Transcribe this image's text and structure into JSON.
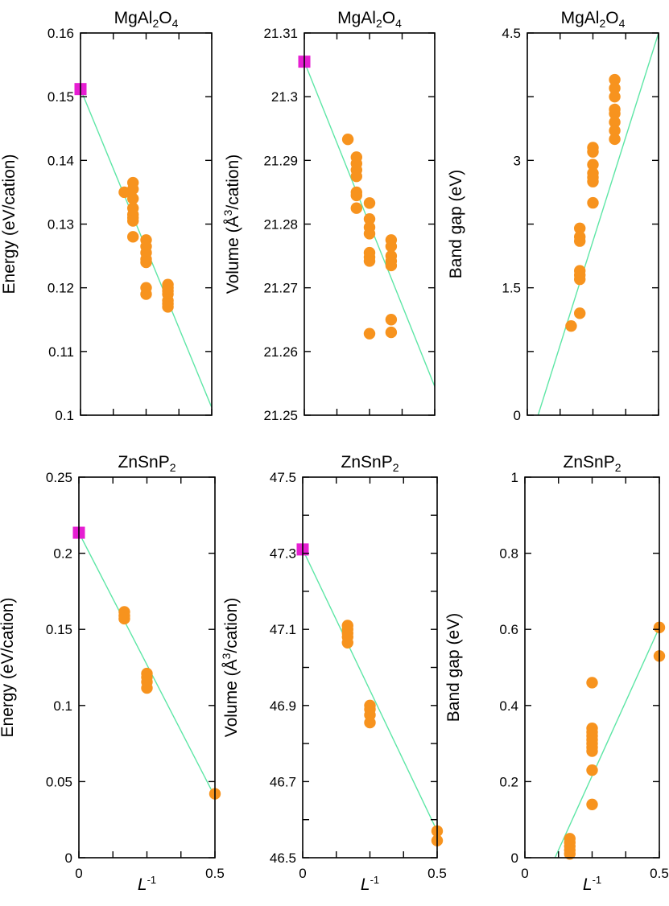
{
  "colors": {
    "points": "#f7931e",
    "reference": "#e61ed2",
    "fit": "#5ee6a6"
  },
  "chart_data": [
    {
      "type": "scatter",
      "title": "MgAl2O4",
      "title_main": "MgAl",
      "title_sub1": "2",
      "title_mid": "O",
      "title_sub2": "4",
      "ylabel": "Energy (eV/cation)",
      "xlabel": "",
      "xlim": [
        0,
        0.5
      ],
      "ylim": [
        0.1,
        0.16
      ],
      "xticks": [
        0,
        0.125,
        0.25,
        0.375,
        0.5
      ],
      "xtick_labels": [
        "",
        "",
        "",
        "",
        ""
      ],
      "yticks": [
        0.1,
        0.11,
        0.12,
        0.13,
        0.14,
        0.15,
        0.16
      ],
      "ytick_labels": [
        "0.1",
        "0.11",
        "0.12",
        "0.13",
        "0.14",
        "0.15",
        "0.16"
      ],
      "reference": [
        {
          "x": 0,
          "y": 0.1512
        }
      ],
      "points": [
        {
          "x": 0.167,
          "y": 0.135
        },
        {
          "x": 0.2,
          "y": 0.1365
        },
        {
          "x": 0.2,
          "y": 0.1355
        },
        {
          "x": 0.2,
          "y": 0.134
        },
        {
          "x": 0.2,
          "y": 0.1325
        },
        {
          "x": 0.2,
          "y": 0.1315
        },
        {
          "x": 0.2,
          "y": 0.131
        },
        {
          "x": 0.2,
          "y": 0.1305
        },
        {
          "x": 0.2,
          "y": 0.128
        },
        {
          "x": 0.25,
          "y": 0.1275
        },
        {
          "x": 0.25,
          "y": 0.1265
        },
        {
          "x": 0.25,
          "y": 0.1255
        },
        {
          "x": 0.25,
          "y": 0.1245
        },
        {
          "x": 0.25,
          "y": 0.124
        },
        {
          "x": 0.25,
          "y": 0.12
        },
        {
          "x": 0.25,
          "y": 0.119
        },
        {
          "x": 0.333,
          "y": 0.1205
        },
        {
          "x": 0.333,
          "y": 0.12
        },
        {
          "x": 0.333,
          "y": 0.1195
        },
        {
          "x": 0.333,
          "y": 0.119
        },
        {
          "x": 0.333,
          "y": 0.118
        },
        {
          "x": 0.333,
          "y": 0.1175
        },
        {
          "x": 0.333,
          "y": 0.117
        }
      ],
      "fit": {
        "x": [
          0,
          0.5
        ],
        "y": [
          0.1512,
          0.1012
        ]
      }
    },
    {
      "type": "scatter",
      "title": "MgAl2O4",
      "title_main": "MgAl",
      "title_sub1": "2",
      "title_mid": "O",
      "title_sub2": "4",
      "ylabel": "Volume (Å³/cation)",
      "ylabel_main": "Volume (Å",
      "ylabel_sup": "3",
      "ylabel_end": "/cation)",
      "xlabel": "",
      "xlim": [
        0,
        0.5
      ],
      "ylim": [
        21.25,
        21.31
      ],
      "xticks": [
        0,
        0.125,
        0.25,
        0.375,
        0.5
      ],
      "xtick_labels": [
        "",
        "",
        "",
        "",
        ""
      ],
      "yticks": [
        21.25,
        21.26,
        21.27,
        21.28,
        21.29,
        21.3,
        21.31
      ],
      "ytick_labels": [
        "21.25",
        "21.26",
        "21.27",
        "21.28",
        "21.29",
        "21.3",
        "21.31"
      ],
      "reference": [
        {
          "x": 0,
          "y": 21.3055
        }
      ],
      "points": [
        {
          "x": 0.167,
          "y": 21.2933
        },
        {
          "x": 0.2,
          "y": 21.2905
        },
        {
          "x": 0.2,
          "y": 21.2895
        },
        {
          "x": 0.2,
          "y": 21.2885
        },
        {
          "x": 0.2,
          "y": 21.2875
        },
        {
          "x": 0.2,
          "y": 21.285
        },
        {
          "x": 0.2,
          "y": 21.2845
        },
        {
          "x": 0.2,
          "y": 21.2825
        },
        {
          "x": 0.25,
          "y": 21.2833
        },
        {
          "x": 0.25,
          "y": 21.2808
        },
        {
          "x": 0.25,
          "y": 21.2795
        },
        {
          "x": 0.25,
          "y": 21.2785
        },
        {
          "x": 0.25,
          "y": 21.2755
        },
        {
          "x": 0.25,
          "y": 21.2748
        },
        {
          "x": 0.25,
          "y": 21.2742
        },
        {
          "x": 0.25,
          "y": 21.2628
        },
        {
          "x": 0.333,
          "y": 21.2775
        },
        {
          "x": 0.333,
          "y": 21.2765
        },
        {
          "x": 0.333,
          "y": 21.275
        },
        {
          "x": 0.333,
          "y": 21.2742
        },
        {
          "x": 0.333,
          "y": 21.2735
        },
        {
          "x": 0.333,
          "y": 21.265
        },
        {
          "x": 0.333,
          "y": 21.263
        }
      ],
      "fit": {
        "x": [
          0,
          0.5
        ],
        "y": [
          21.3055,
          21.2545
        ]
      }
    },
    {
      "type": "scatter",
      "title": "MgAl2O4",
      "title_main": "MgAl",
      "title_sub1": "2",
      "title_mid": "O",
      "title_sub2": "4",
      "ylabel": "Band gap (eV)",
      "xlabel": "",
      "xlim": [
        0,
        0.5
      ],
      "ylim": [
        0,
        4.5
      ],
      "xticks": [
        0,
        0.125,
        0.25,
        0.375,
        0.5
      ],
      "xtick_labels": [
        "",
        "",
        "",
        "",
        ""
      ],
      "yticks": [
        0,
        0.75,
        1.5,
        2.25,
        3,
        3.75,
        4.5
      ],
      "ytick_labels": [
        "0",
        "",
        "1.5",
        "",
        "3",
        "",
        "4.5"
      ],
      "reference": [],
      "points": [
        {
          "x": 0.167,
          "y": 1.05
        },
        {
          "x": 0.2,
          "y": 2.2
        },
        {
          "x": 0.2,
          "y": 2.1
        },
        {
          "x": 0.2,
          "y": 2.05
        },
        {
          "x": 0.2,
          "y": 1.7
        },
        {
          "x": 0.2,
          "y": 1.65
        },
        {
          "x": 0.2,
          "y": 1.6
        },
        {
          "x": 0.2,
          "y": 1.2
        },
        {
          "x": 0.25,
          "y": 3.15
        },
        {
          "x": 0.25,
          "y": 3.1
        },
        {
          "x": 0.25,
          "y": 2.95
        },
        {
          "x": 0.25,
          "y": 2.85
        },
        {
          "x": 0.25,
          "y": 2.8
        },
        {
          "x": 0.25,
          "y": 2.75
        },
        {
          "x": 0.25,
          "y": 2.5
        },
        {
          "x": 0.333,
          "y": 3.95
        },
        {
          "x": 0.333,
          "y": 3.85
        },
        {
          "x": 0.333,
          "y": 3.75
        },
        {
          "x": 0.333,
          "y": 3.6
        },
        {
          "x": 0.333,
          "y": 3.55
        },
        {
          "x": 0.333,
          "y": 3.45
        },
        {
          "x": 0.333,
          "y": 3.35
        },
        {
          "x": 0.333,
          "y": 3.25
        }
      ],
      "fit": {
        "x": [
          0.041,
          0.5
        ],
        "y": [
          0,
          4.5
        ]
      }
    },
    {
      "type": "scatter",
      "title": "ZnSnP2",
      "title_main": "ZnSnP",
      "title_sub1": "2",
      "title_mid": "",
      "title_sub2": "",
      "ylabel": "Energy (eV/cation)",
      "xlabel": "L-1",
      "xlabel_main": "L",
      "xlabel_sup": "-1",
      "xlim": [
        0,
        0.5
      ],
      "ylim": [
        0,
        0.25
      ],
      "xticks": [
        0,
        0.125,
        0.25,
        0.375,
        0.5
      ],
      "xtick_labels": [
        "0",
        "",
        "",
        "",
        "0.5"
      ],
      "yticks": [
        0,
        0.05,
        0.1,
        0.15,
        0.2,
        0.25
      ],
      "ytick_labels": [
        "0",
        "0.05",
        "0.1",
        "0.15",
        "0.2",
        "0.25"
      ],
      "reference": [
        {
          "x": 0,
          "y": 0.2135
        }
      ],
      "points": [
        {
          "x": 0.167,
          "y": 0.1615
        },
        {
          "x": 0.167,
          "y": 0.159
        },
        {
          "x": 0.167,
          "y": 0.157
        },
        {
          "x": 0.25,
          "y": 0.121
        },
        {
          "x": 0.25,
          "y": 0.1185
        },
        {
          "x": 0.25,
          "y": 0.1155
        },
        {
          "x": 0.25,
          "y": 0.1115
        },
        {
          "x": 0.5,
          "y": 0.042
        }
      ],
      "fit": {
        "x": [
          0,
          0.5
        ],
        "y": [
          0.2135,
          0.04
        ]
      }
    },
    {
      "type": "scatter",
      "title": "ZnSnP2",
      "title_main": "ZnSnP",
      "title_sub1": "2",
      "title_mid": "",
      "title_sub2": "",
      "ylabel": "Volume (Å³/cation)",
      "ylabel_main": "Volume (Å",
      "ylabel_sup": "3",
      "ylabel_end": "/cation)",
      "xlabel": "L-1",
      "xlabel_main": "L",
      "xlabel_sup": "-1",
      "xlim": [
        0,
        0.5
      ],
      "ylim": [
        46.5,
        47.5
      ],
      "xticks": [
        0,
        0.125,
        0.25,
        0.375,
        0.5
      ],
      "xtick_labels": [
        "0",
        "",
        "",
        "",
        "0.5"
      ],
      "yticks": [
        46.5,
        46.6,
        46.7,
        46.8,
        46.9,
        47,
        47.1,
        47.2,
        47.3,
        47.4,
        47.5
      ],
      "ytick_labels": [
        "46.5",
        "",
        "46.7",
        "",
        "46.9",
        "",
        "47.1",
        "",
        "47.3",
        "",
        "47.5"
      ],
      "reference": [
        {
          "x": 0,
          "y": 47.31
        }
      ],
      "points": [
        {
          "x": 0.167,
          "y": 47.11
        },
        {
          "x": 0.167,
          "y": 47.1
        },
        {
          "x": 0.167,
          "y": 47.09
        },
        {
          "x": 0.167,
          "y": 47.08
        },
        {
          "x": 0.167,
          "y": 47.065
        },
        {
          "x": 0.25,
          "y": 46.9
        },
        {
          "x": 0.25,
          "y": 46.89
        },
        {
          "x": 0.25,
          "y": 46.875
        },
        {
          "x": 0.25,
          "y": 46.855
        },
        {
          "x": 0.5,
          "y": 46.57
        },
        {
          "x": 0.5,
          "y": 46.545
        }
      ],
      "fit": {
        "x": [
          0,
          0.5
        ],
        "y": [
          47.31,
          46.57
        ]
      }
    },
    {
      "type": "scatter",
      "title": "ZnSnP2",
      "title_main": "ZnSnP",
      "title_sub1": "2",
      "title_mid": "",
      "title_sub2": "",
      "ylabel": "Band gap (eV)",
      "xlabel": "L-1",
      "xlabel_main": "L",
      "xlabel_sup": "-1",
      "xlim": [
        0,
        0.5
      ],
      "ylim": [
        0,
        1
      ],
      "xticks": [
        0,
        0.125,
        0.25,
        0.375,
        0.5
      ],
      "xtick_labels": [
        "0",
        "",
        "",
        "",
        "0.5"
      ],
      "yticks": [
        0,
        0.2,
        0.4,
        0.6,
        0.8,
        1
      ],
      "ytick_labels": [
        "0",
        "0.2",
        "0.4",
        "0.6",
        "0.8",
        "1"
      ],
      "reference": [],
      "points": [
        {
          "x": 0.167,
          "y": 0.05
        },
        {
          "x": 0.167,
          "y": 0.04
        },
        {
          "x": 0.167,
          "y": 0.03
        },
        {
          "x": 0.167,
          "y": 0.02
        },
        {
          "x": 0.167,
          "y": 0.01
        },
        {
          "x": 0.25,
          "y": 0.46
        },
        {
          "x": 0.25,
          "y": 0.34
        },
        {
          "x": 0.25,
          "y": 0.33
        },
        {
          "x": 0.25,
          "y": 0.32
        },
        {
          "x": 0.25,
          "y": 0.31
        },
        {
          "x": 0.25,
          "y": 0.3
        },
        {
          "x": 0.25,
          "y": 0.29
        },
        {
          "x": 0.25,
          "y": 0.28
        },
        {
          "x": 0.25,
          "y": 0.23
        },
        {
          "x": 0.25,
          "y": 0.14
        },
        {
          "x": 0.5,
          "y": 0.605
        },
        {
          "x": 0.5,
          "y": 0.53
        }
      ],
      "fit": {
        "x": [
          0.112,
          0.5
        ],
        "y": [
          0,
          0.605
        ]
      }
    }
  ]
}
